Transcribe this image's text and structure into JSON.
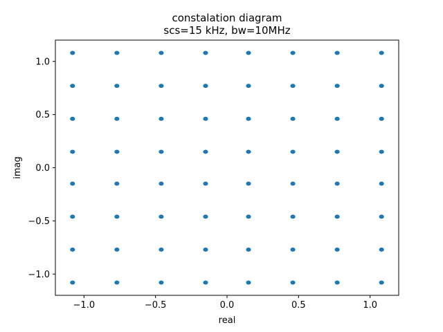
{
  "chart_data": {
    "type": "scatter",
    "title": "constalation diagram",
    "subtitle": "scs=15 kHz, bw=10MHz",
    "xlabel": "real",
    "ylabel": "imag",
    "xlim": [
      -1.2,
      1.2
    ],
    "ylim": [
      -1.2,
      1.2
    ],
    "xticks": [
      -1.0,
      -0.5,
      0.0,
      0.5,
      1.0
    ],
    "yticks": [
      -1.0,
      -0.5,
      0.0,
      0.5,
      1.0
    ],
    "xtick_labels": [
      "−1.0",
      "−0.5",
      "0.0",
      "0.5",
      "1.0"
    ],
    "ytick_labels": [
      "−1.0",
      "−0.5",
      "0.0",
      "0.5",
      "1.0"
    ],
    "grid": false,
    "legend": "none",
    "marker_color": "#1f77b4",
    "levels": [
      -1.08,
      -0.77,
      -0.46,
      -0.15,
      0.15,
      0.46,
      0.77,
      1.08
    ]
  }
}
